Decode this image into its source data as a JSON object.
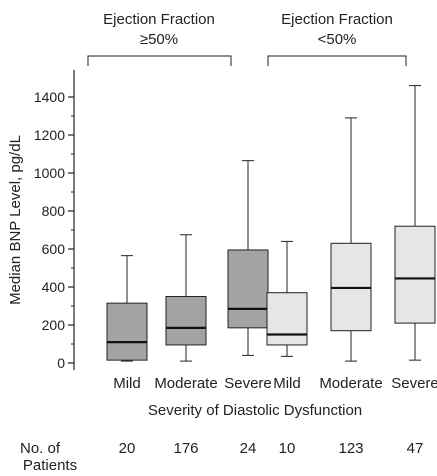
{
  "chart_data": {
    "type": "box",
    "group_labels": [
      "Ejection Fraction\n≥50%",
      "Ejection Fraction\n<50%"
    ],
    "categories": [
      "Mild",
      "Moderate",
      "Severe",
      "Mild",
      "Moderate",
      "Severe"
    ],
    "xlabel": "Severity of Diastolic Dysfunction",
    "ylabel": "Median BNP Level, pg/dL",
    "ylim": [
      0,
      1500
    ],
    "yticks": [
      "0",
      "200",
      "400",
      "600",
      "800",
      "1000",
      "1200",
      "1400"
    ],
    "patients_label": "No. of\nPatients",
    "patients": [
      "20",
      "176",
      "24",
      "10",
      "123",
      "47"
    ],
    "boxes": [
      {
        "group": 0,
        "category": "Mild",
        "min": 10,
        "q1": 15,
        "median": 110,
        "q3": 315,
        "max": 565,
        "color": "#a3a3a3"
      },
      {
        "group": 0,
        "category": "Moderate",
        "min": 10,
        "q1": 95,
        "median": 185,
        "q3": 350,
        "max": 675,
        "color": "#a3a3a3"
      },
      {
        "group": 0,
        "category": "Severe",
        "min": 40,
        "q1": 185,
        "median": 285,
        "q3": 595,
        "max": 1065,
        "color": "#a3a3a3"
      },
      {
        "group": 1,
        "category": "Mild",
        "min": 35,
        "q1": 95,
        "median": 150,
        "q3": 370,
        "max": 640,
        "color": "#e6e6e6"
      },
      {
        "group": 1,
        "category": "Moderate",
        "min": 10,
        "q1": 170,
        "median": 395,
        "q3": 630,
        "max": 1290,
        "color": "#e6e6e6"
      },
      {
        "group": 1,
        "category": "Severe",
        "min": 15,
        "q1": 210,
        "median": 445,
        "q3": 720,
        "max": 1460,
        "color": "#e6e6e6"
      }
    ]
  }
}
